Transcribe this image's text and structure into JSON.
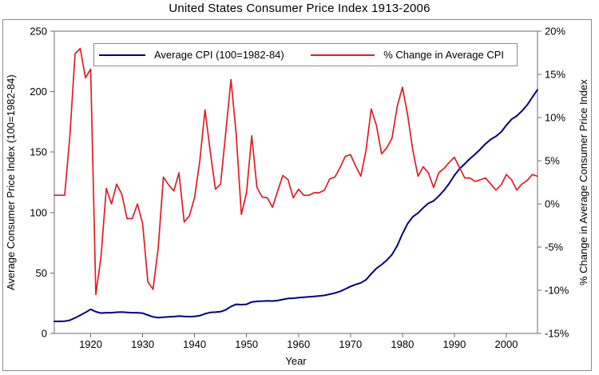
{
  "title": "United States Consumer Price Index 1913-2006",
  "legend": {
    "cpi_label": "Average CPI (100=1982-84)",
    "pct_label": "% Change in Average CPI"
  },
  "axes": {
    "left_title": "Average Consumer Price Index (100=1982-84)",
    "right_title": "% Change in Average Consumer Price Index",
    "x_title": "Year"
  },
  "colors": {
    "cpi_line": "#00008b",
    "pct_line": "#e41b23",
    "axis": "#6e6e6e",
    "text": "#000000",
    "background": "#ffffff"
  },
  "chart_data": {
    "type": "line",
    "title": "United States Consumer Price Index 1913-2006",
    "xlabel": "Year",
    "ylabel_left": "Average Consumer Price Index (100=1982-84)",
    "ylabel_right": "% Change in Average Consumer Price Index",
    "x_range": [
      1913,
      2006
    ],
    "ylim_left": [
      0,
      250
    ],
    "ylim_right": [
      -15,
      20
    ],
    "grid": false,
    "legend_position": "top-center",
    "x_ticks": [
      {
        "v": 1920,
        "t": "1920"
      },
      {
        "v": 1930,
        "t": "1930"
      },
      {
        "v": 1940,
        "t": "1940"
      },
      {
        "v": 1950,
        "t": "1950"
      },
      {
        "v": 1960,
        "t": "1960"
      },
      {
        "v": 1970,
        "t": "1970"
      },
      {
        "v": 1980,
        "t": "1980"
      },
      {
        "v": 1990,
        "t": "1990"
      },
      {
        "v": 2000,
        "t": "2000"
      }
    ],
    "y_left_ticks": [
      {
        "v": 0,
        "t": "0"
      },
      {
        "v": 50,
        "t": "50"
      },
      {
        "v": 100,
        "t": "100"
      },
      {
        "v": 150,
        "t": "150"
      },
      {
        "v": 200,
        "t": "200"
      },
      {
        "v": 250,
        "t": "250"
      }
    ],
    "y_right_ticks": [
      {
        "v": 20,
        "t": "20%"
      },
      {
        "v": 15,
        "t": "15%"
      },
      {
        "v": 10,
        "t": "10%"
      },
      {
        "v": 5,
        "t": "5%"
      },
      {
        "v": 0,
        "t": "0%"
      },
      {
        "v": -5,
        "t": "-5%"
      },
      {
        "v": -10,
        "t": "-10%"
      },
      {
        "v": -15,
        "t": "-15%"
      }
    ],
    "years": [
      1913,
      1914,
      1915,
      1916,
      1917,
      1918,
      1919,
      1920,
      1921,
      1922,
      1923,
      1924,
      1925,
      1926,
      1927,
      1928,
      1929,
      1930,
      1931,
      1932,
      1933,
      1934,
      1935,
      1936,
      1937,
      1938,
      1939,
      1940,
      1941,
      1942,
      1943,
      1944,
      1945,
      1946,
      1947,
      1948,
      1949,
      1950,
      1951,
      1952,
      1953,
      1954,
      1955,
      1956,
      1957,
      1958,
      1959,
      1960,
      1961,
      1962,
      1963,
      1964,
      1965,
      1966,
      1967,
      1968,
      1969,
      1970,
      1971,
      1972,
      1973,
      1974,
      1975,
      1976,
      1977,
      1978,
      1979,
      1980,
      1981,
      1982,
      1983,
      1984,
      1985,
      1986,
      1987,
      1988,
      1989,
      1990,
      1991,
      1992,
      1993,
      1994,
      1995,
      1996,
      1997,
      1998,
      1999,
      2000,
      2001,
      2002,
      2003,
      2004,
      2005,
      2006
    ],
    "series": [
      {
        "name": "Average CPI (100=1982-84)",
        "axis": "left",
        "color": "#00008b",
        "stroke_width": 2,
        "values": [
          9.9,
          10,
          10.1,
          10.9,
          12.8,
          15.1,
          17.3,
          20,
          17.9,
          16.8,
          17.1,
          17.1,
          17.5,
          17.7,
          17.4,
          17.1,
          17.1,
          16.7,
          15.2,
          13.7,
          13,
          13.4,
          13.7,
          13.9,
          14.4,
          14.1,
          13.9,
          14,
          14.7,
          16.3,
          17.3,
          17.6,
          18,
          19.5,
          22.3,
          24.1,
          23.8,
          24.1,
          26,
          26.5,
          26.7,
          26.9,
          26.8,
          27.2,
          28.1,
          28.9,
          29.1,
          29.6,
          29.9,
          30.2,
          30.6,
          31,
          31.5,
          32.4,
          33.4,
          34.8,
          36.7,
          38.8,
          40.5,
          41.8,
          44.4,
          49.3,
          53.8,
          56.9,
          60.6,
          65.2,
          72.6,
          82.4,
          90.9,
          96.5,
          99.6,
          103.9,
          107.6,
          109.6,
          113.6,
          118.3,
          124,
          130.7,
          136.2,
          140.3,
          144.5,
          148.2,
          152.4,
          156.9,
          160.5,
          163,
          166.6,
          172.2,
          177.1,
          179.9,
          184,
          188.9,
          195.3,
          201.6
        ]
      },
      {
        "name": "% Change in Average CPI",
        "axis": "right",
        "color": "#e41b23",
        "stroke_width": 1.7,
        "values": [
          1,
          1,
          1,
          7.9,
          17.4,
          18,
          14.6,
          15.6,
          -10.5,
          -6.1,
          1.8,
          0,
          2.3,
          1.1,
          -1.7,
          -1.7,
          0,
          -2.3,
          -9,
          -9.9,
          -5.1,
          3.1,
          2.2,
          1.5,
          3.6,
          -2.1,
          -1.4,
          0.7,
          5,
          10.9,
          6.1,
          1.7,
          2.3,
          8.3,
          14.4,
          8.1,
          -1.2,
          1.3,
          7.9,
          1.9,
          0.8,
          0.7,
          -0.4,
          1.5,
          3.3,
          2.8,
          0.7,
          1.7,
          1,
          1,
          1.3,
          1.3,
          1.6,
          2.9,
          3.1,
          4.2,
          5.5,
          5.7,
          4.4,
          3.2,
          6.2,
          11,
          9.1,
          5.8,
          6.5,
          7.6,
          11.3,
          13.5,
          10.3,
          6.2,
          3.2,
          4.3,
          3.6,
          1.9,
          3.6,
          4.1,
          4.8,
          5.4,
          4.2,
          3,
          3,
          2.6,
          2.8,
          3,
          2.3,
          1.6,
          2.2,
          3.4,
          2.8,
          1.6,
          2.3,
          2.7,
          3.4,
          3.2
        ]
      }
    ]
  }
}
